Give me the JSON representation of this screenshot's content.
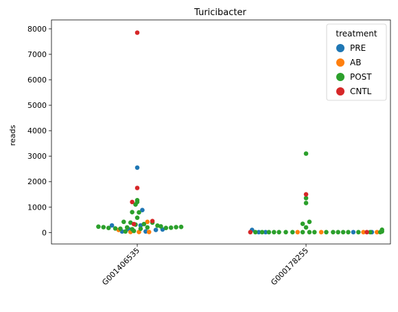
{
  "chart_data": {
    "type": "scatter",
    "subtype": "swarm",
    "title": "Turicibacter",
    "xlabel": "",
    "ylabel": "reads",
    "categories": [
      "G001406535",
      "G000178255"
    ],
    "ylim": [
      -450,
      8350
    ],
    "yticks": [
      0,
      1000,
      2000,
      3000,
      4000,
      5000,
      6000,
      7000,
      8000
    ],
    "grid": false,
    "legend": {
      "title": "treatment",
      "placement": "top-right",
      "entries": [
        {
          "name": "PRE",
          "color": "#1f77b4"
        },
        {
          "name": "AB",
          "color": "#ff7f0e"
        },
        {
          "name": "POST",
          "color": "#2ca02c"
        },
        {
          "name": "CNTL",
          "color": "#d62728"
        }
      ]
    },
    "series": [
      {
        "name": "PRE",
        "color": "#1f77b4",
        "points": [
          {
            "category": "G001406535",
            "offset": -0.15,
            "y": 280
          },
          {
            "category": "G001406535",
            "offset": -0.09,
            "y": 40
          },
          {
            "category": "G001406535",
            "offset": -0.05,
            "y": 130
          },
          {
            "category": "G001406535",
            "offset": 0.0,
            "y": 2550
          },
          {
            "category": "G001406535",
            "offset": 0.02,
            "y": 280
          },
          {
            "category": "G001406535",
            "offset": 0.03,
            "y": 880
          },
          {
            "category": "G001406535",
            "offset": 0.05,
            "y": 40
          },
          {
            "category": "G001406535",
            "offset": 0.11,
            "y": 100
          },
          {
            "category": "G001406535",
            "offset": 0.15,
            "y": 120
          },
          {
            "category": "G000178255",
            "offset": -0.32,
            "y": 100
          },
          {
            "category": "G000178255",
            "offset": -0.28,
            "y": 15
          },
          {
            "category": "G000178255",
            "offset": -0.24,
            "y": 15
          },
          {
            "category": "G000178255",
            "offset": 0.28,
            "y": 15
          },
          {
            "category": "G000178255",
            "offset": 0.39,
            "y": 15
          }
        ]
      },
      {
        "name": "AB",
        "color": "#ff7f0e",
        "points": [
          {
            "category": "G001406535",
            "offset": -0.11,
            "y": 100
          },
          {
            "category": "G001406535",
            "offset": -0.04,
            "y": 20
          },
          {
            "category": "G001406535",
            "offset": 0.01,
            "y": 20
          },
          {
            "category": "G001406535",
            "offset": 0.06,
            "y": 420
          },
          {
            "category": "G001406535",
            "offset": 0.07,
            "y": 20
          },
          {
            "category": "G000178255",
            "offset": -0.05,
            "y": 15
          },
          {
            "category": "G000178255",
            "offset": 0.09,
            "y": 15
          },
          {
            "category": "G000178255",
            "offset": 0.34,
            "y": 15
          },
          {
            "category": "G000178255",
            "offset": 0.42,
            "y": 15
          }
        ]
      },
      {
        "name": "POST",
        "color": "#2ca02c",
        "points": [
          {
            "category": "G001406535",
            "offset": -0.23,
            "y": 230
          },
          {
            "category": "G001406535",
            "offset": -0.2,
            "y": 210
          },
          {
            "category": "G001406535",
            "offset": -0.17,
            "y": 180
          },
          {
            "category": "G001406535",
            "offset": -0.13,
            "y": 160
          },
          {
            "category": "G001406535",
            "offset": -0.1,
            "y": 150
          },
          {
            "category": "G001406535",
            "offset": -0.08,
            "y": 420
          },
          {
            "category": "G001406535",
            "offset": -0.07,
            "y": 40
          },
          {
            "category": "G001406535",
            "offset": -0.06,
            "y": 200
          },
          {
            "category": "G001406535",
            "offset": -0.04,
            "y": 390
          },
          {
            "category": "G001406535",
            "offset": -0.03,
            "y": 800
          },
          {
            "category": "G001406535",
            "offset": -0.03,
            "y": 130
          },
          {
            "category": "G001406535",
            "offset": -0.02,
            "y": 60
          },
          {
            "category": "G001406535",
            "offset": -0.01,
            "y": 310
          },
          {
            "category": "G001406535",
            "offset": -0.01,
            "y": 1100
          },
          {
            "category": "G001406535",
            "offset": 0.0,
            "y": 1200
          },
          {
            "category": "G001406535",
            "offset": 0.0,
            "y": 1270
          },
          {
            "category": "G001406535",
            "offset": 0.0,
            "y": 580
          },
          {
            "category": "G001406535",
            "offset": 0.01,
            "y": 790
          },
          {
            "category": "G001406535",
            "offset": 0.02,
            "y": 150
          },
          {
            "category": "G001406535",
            "offset": 0.04,
            "y": 330
          },
          {
            "category": "G001406535",
            "offset": 0.06,
            "y": 200
          },
          {
            "category": "G001406535",
            "offset": 0.09,
            "y": 390
          },
          {
            "category": "G001406535",
            "offset": 0.12,
            "y": 270
          },
          {
            "category": "G001406535",
            "offset": 0.14,
            "y": 240
          },
          {
            "category": "G001406535",
            "offset": 0.17,
            "y": 180
          },
          {
            "category": "G001406535",
            "offset": 0.2,
            "y": 190
          },
          {
            "category": "G001406535",
            "offset": 0.23,
            "y": 210
          },
          {
            "category": "G001406535",
            "offset": 0.26,
            "y": 220
          },
          {
            "category": "G000178255",
            "offset": -0.3,
            "y": 15
          },
          {
            "category": "G000178255",
            "offset": -0.26,
            "y": 15
          },
          {
            "category": "G000178255",
            "offset": -0.22,
            "y": 15
          },
          {
            "category": "G000178255",
            "offset": -0.19,
            "y": 15
          },
          {
            "category": "G000178255",
            "offset": -0.16,
            "y": 15
          },
          {
            "category": "G000178255",
            "offset": -0.12,
            "y": 15
          },
          {
            "category": "G000178255",
            "offset": -0.08,
            "y": 15
          },
          {
            "category": "G000178255",
            "offset": -0.02,
            "y": 15
          },
          {
            "category": "G000178255",
            "offset": -0.02,
            "y": 340
          },
          {
            "category": "G000178255",
            "offset": 0.0,
            "y": 3100
          },
          {
            "category": "G000178255",
            "offset": 0.0,
            "y": 1350
          },
          {
            "category": "G000178255",
            "offset": 0.0,
            "y": 1160
          },
          {
            "category": "G000178255",
            "offset": 0.0,
            "y": 200
          },
          {
            "category": "G000178255",
            "offset": 0.02,
            "y": 15
          },
          {
            "category": "G000178255",
            "offset": 0.02,
            "y": 420
          },
          {
            "category": "G000178255",
            "offset": 0.05,
            "y": 15
          },
          {
            "category": "G000178255",
            "offset": 0.12,
            "y": 15
          },
          {
            "category": "G000178255",
            "offset": 0.16,
            "y": 15
          },
          {
            "category": "G000178255",
            "offset": 0.19,
            "y": 15
          },
          {
            "category": "G000178255",
            "offset": 0.22,
            "y": 15
          },
          {
            "category": "G000178255",
            "offset": 0.25,
            "y": 15
          },
          {
            "category": "G000178255",
            "offset": 0.31,
            "y": 15
          },
          {
            "category": "G000178255",
            "offset": 0.38,
            "y": 15
          },
          {
            "category": "G000178255",
            "offset": 0.45,
            "y": 40
          },
          {
            "category": "G000178255",
            "offset": 0.45,
            "y": 110
          },
          {
            "category": "G000178255",
            "offset": 0.44,
            "y": 15
          }
        ]
      },
      {
        "name": "CNTL",
        "color": "#d62728",
        "points": [
          {
            "category": "G001406535",
            "offset": 0.0,
            "y": 7850
          },
          {
            "category": "G001406535",
            "offset": 0.0,
            "y": 1750
          },
          {
            "category": "G001406535",
            "offset": -0.03,
            "y": 1200
          },
          {
            "category": "G001406535",
            "offset": 0.09,
            "y": 450
          },
          {
            "category": "G001406535",
            "offset": -0.02,
            "y": 330
          },
          {
            "category": "G000178255",
            "offset": -0.33,
            "y": 15
          },
          {
            "category": "G000178255",
            "offset": 0.0,
            "y": 1500
          },
          {
            "category": "G000178255",
            "offset": 0.36,
            "y": 15
          }
        ]
      }
    ]
  }
}
